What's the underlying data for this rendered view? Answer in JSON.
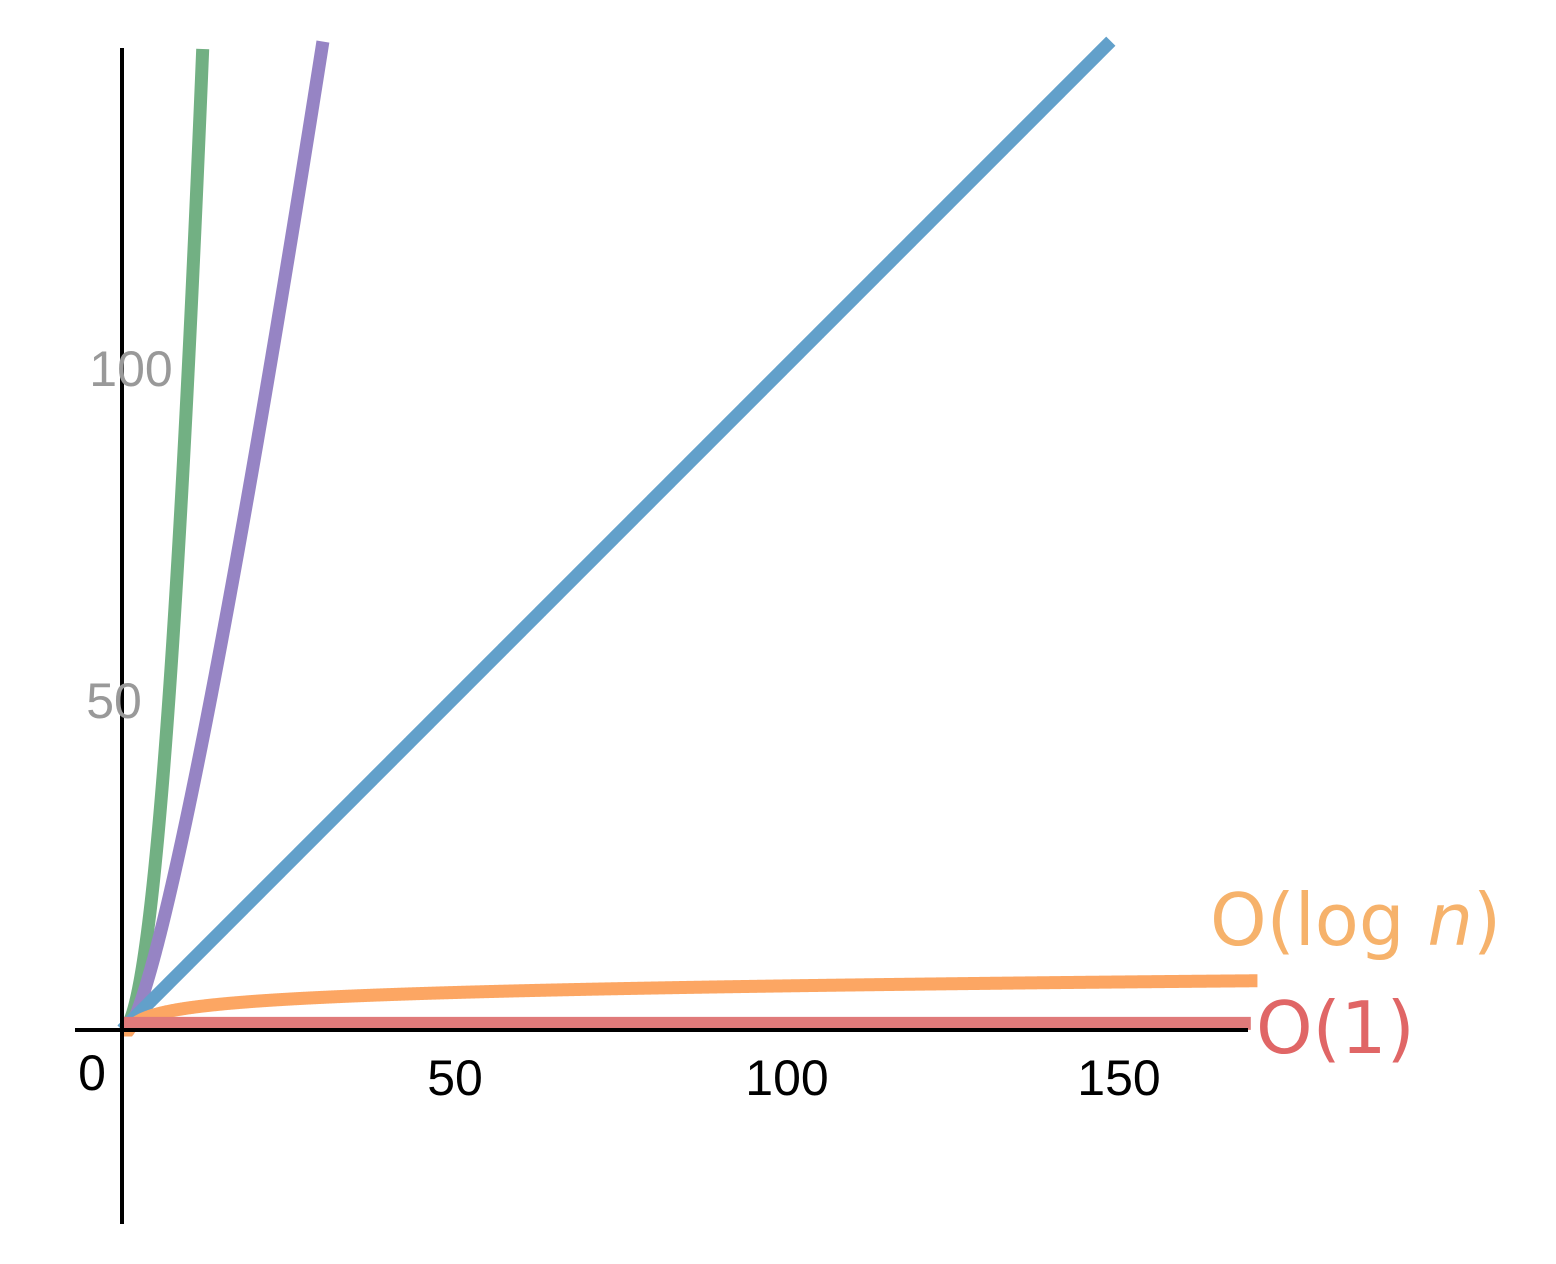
{
  "chart_data": {
    "type": "line",
    "title": "",
    "xlabel": "",
    "ylabel": "",
    "xlim": [
      -7,
      170
    ],
    "ylim": [
      -29,
      148
    ],
    "grid": false,
    "x_ticks": [
      "0",
      "50",
      "100",
      "150"
    ],
    "y_ticks": [
      "50",
      "100"
    ],
    "series": [
      {
        "key": "quadratic",
        "formula": "n^2",
        "color": "#72b083"
      },
      {
        "key": "nlogn",
        "formula": "n*log2(n)",
        "color": "#9684c4"
      },
      {
        "key": "linear",
        "formula": "n",
        "color": "#62a0ca"
      },
      {
        "key": "log",
        "name": "O(log n)",
        "name_parts": [
          "O(log ",
          "n",
          ")"
        ],
        "formula": "log2(n)",
        "color": "#fca663",
        "label_color": "#f6b26b"
      },
      {
        "key": "constant",
        "name": "O(1)",
        "formula": "1",
        "color": "#e07a7a",
        "label_color": "#e06666"
      }
    ]
  }
}
